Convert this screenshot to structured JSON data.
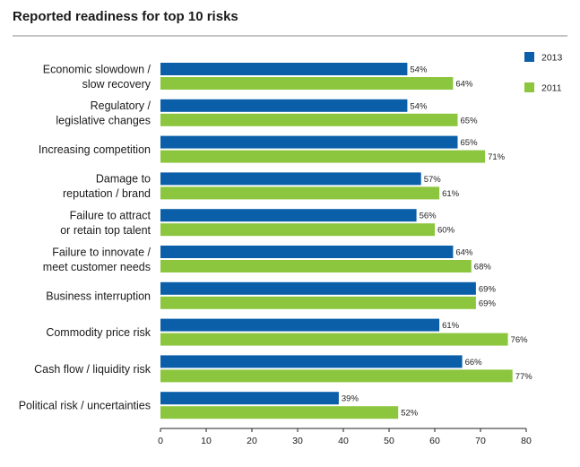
{
  "chart_data": {
    "type": "bar",
    "orientation": "horizontal",
    "title": "Reported readiness for top 10 risks",
    "categories": [
      [
        "Economic slowdown /",
        "slow recovery"
      ],
      [
        "Regulatory /",
        "legislative changes"
      ],
      [
        "Increasing competition"
      ],
      [
        "Damage to",
        "reputation / brand"
      ],
      [
        "Failure to attract",
        "or retain top talent"
      ],
      [
        "Failure to innovate /",
        "meet customer needs"
      ],
      [
        "Business interruption"
      ],
      [
        "Commodity price risk"
      ],
      [
        "Cash flow / liquidity risk"
      ],
      [
        "Political risk / uncertainties"
      ]
    ],
    "series": [
      {
        "name": "2013",
        "color": "#0a5fa8",
        "values": [
          54,
          54,
          65,
          57,
          56,
          64,
          69,
          61,
          66,
          39
        ],
        "labels": [
          "54%",
          "54%",
          "65%",
          "57%",
          "56%",
          "64%",
          "69%",
          "61%",
          "66%",
          "39%"
        ]
      },
      {
        "name": "2011",
        "color": "#8cc63f",
        "values": [
          64,
          65,
          71,
          61,
          60,
          68,
          69,
          76,
          77,
          52
        ],
        "labels": [
          "64%",
          "65%",
          "71%",
          "61%",
          "60%",
          "68%",
          "69%",
          "76%",
          "77%",
          "52%"
        ]
      }
    ],
    "xlim": [
      0,
      80
    ],
    "xticks": [
      0,
      10,
      20,
      30,
      40,
      50,
      60,
      70,
      80
    ],
    "xticklabels": [
      "0",
      "10",
      "20",
      "30",
      "40",
      "50",
      "60",
      "70",
      "80"
    ],
    "xlabel": "",
    "ylabel": "",
    "grid": false,
    "legend_position": "top-right"
  }
}
